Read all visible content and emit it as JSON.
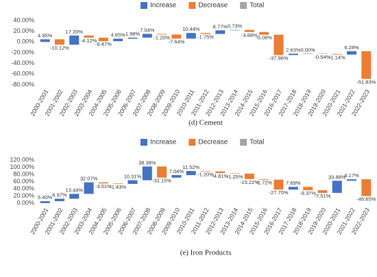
{
  "chart_data": [
    {
      "type": "waterfall",
      "caption": "(d) Cement",
      "legend": [
        {
          "name": "Increase",
          "color": "#4472c4"
        },
        {
          "name": "Decrease",
          "color": "#ed7d31"
        },
        {
          "name": "Total",
          "color": "#a5a5a5"
        }
      ],
      "categories": [
        "2000-2001",
        "2001-2002",
        "2002-2003",
        "2003-2004",
        "2004-2005",
        "2005-2006",
        "2006-2007",
        "2007-2008",
        "2008-2009",
        "2009-2010",
        "2010-2011",
        "2011-2012",
        "2012-2013",
        "2013-2014",
        "2014-2015",
        "2015-2016",
        "2016-2017",
        "2017-2018",
        "2018-2019",
        "2019-2020",
        "2020-2021",
        "2021-2022",
        "2022-2023"
      ],
      "values": [
        4.95,
        -10.12,
        17.2,
        -4.12,
        -6.47,
        4.65,
        1.98,
        7.04,
        -1.2,
        -7.64,
        10.44,
        -1.75,
        6.77,
        0.73,
        -3.88,
        -5.08,
        -37.96,
        2.63,
        0.0,
        -0.54,
        -1.14,
        6.28,
        -51.83
      ],
      "value_labels": [
        "4.95%",
        "-10.12%",
        "17.20%",
        "-4.12%",
        "-6.47%",
        "4.65%",
        "1.98%",
        "7.04%",
        "-1.20%",
        "-7.64%",
        "10.44%",
        "-1.75%",
        "6.77%",
        "0.73%",
        "-3.88%",
        "-5.08%",
        "-37.96%",
        "2.63%",
        "0.00%",
        "-0.54%",
        "-1.14%",
        "6.28%",
        "-51.83%"
      ],
      "ylim": [
        -80,
        40
      ],
      "yticks": [
        {
          "value": -80,
          "label": "-80.00%"
        },
        {
          "value": -60,
          "label": "-60.00%"
        },
        {
          "value": -40,
          "label": "-40.00%"
        },
        {
          "value": -20,
          "label": "-20.00%"
        },
        {
          "value": 0,
          "label": "0.00%"
        },
        {
          "value": 20,
          "label": "20.00%"
        },
        {
          "value": 40,
          "label": "40.00%"
        }
      ],
      "grid": false
    },
    {
      "type": "waterfall",
      "caption": "(e) Iron Products",
      "legend": [
        {
          "name": "Increase",
          "color": "#4472c4"
        },
        {
          "name": "Decrease",
          "color": "#ed7d31"
        },
        {
          "name": "Total",
          "color": "#a5a5a5"
        }
      ],
      "categories": [
        "2000-2001",
        "2001-2002",
        "2002-2003",
        "2003-2004",
        "2004-2005",
        "2005-2006",
        "2006-2007",
        "2007-2008",
        "2008-2009",
        "2009-2010",
        "2010-2011",
        "2011-2012",
        "2012-2013",
        "2013-2014",
        "2014-2015",
        "2015-2016",
        "2016-2017",
        "2017-2018",
        "2018-2019",
        "2019-2020",
        "2020-2021",
        "2021-2022",
        "2022-2023"
      ],
      "values": [
        5.4,
        6.97,
        13.44,
        32.07,
        -3.01,
        -1.43,
        10.31,
        38.38,
        -31.15,
        7.04,
        11.52,
        -1.2,
        -4.81,
        -1.25,
        -15.22,
        -1.72,
        -27.7,
        7.69,
        -9.37,
        -7.51,
        33.88,
        4.17,
        -46.65
      ],
      "value_labels": [
        "5.40%",
        "6.97%",
        "13.44%",
        "32.07%",
        "-3.01%",
        "-1.43%",
        "10.31%",
        "38.38%",
        "-31.15%",
        "7.04%",
        "11.52%",
        "-1.20%",
        "-4.81%",
        "-1.25%",
        "-15.22%",
        "-1.72%",
        "-27.70%",
        "7.69%",
        "-9.37%",
        "-7.51%",
        "33.88%",
        "4.17%",
        "-46.65%"
      ],
      "ylim": [
        0,
        120
      ],
      "yticks": [
        {
          "value": 0,
          "label": "0.00%"
        },
        {
          "value": 20,
          "label": "20.00%"
        },
        {
          "value": 40,
          "label": "40.00%"
        },
        {
          "value": 60,
          "label": "60.00%"
        },
        {
          "value": 80,
          "label": "80.00%"
        },
        {
          "value": 100,
          "label": "100.00%"
        },
        {
          "value": 120,
          "label": "120.00%"
        }
      ],
      "grid": false
    }
  ]
}
